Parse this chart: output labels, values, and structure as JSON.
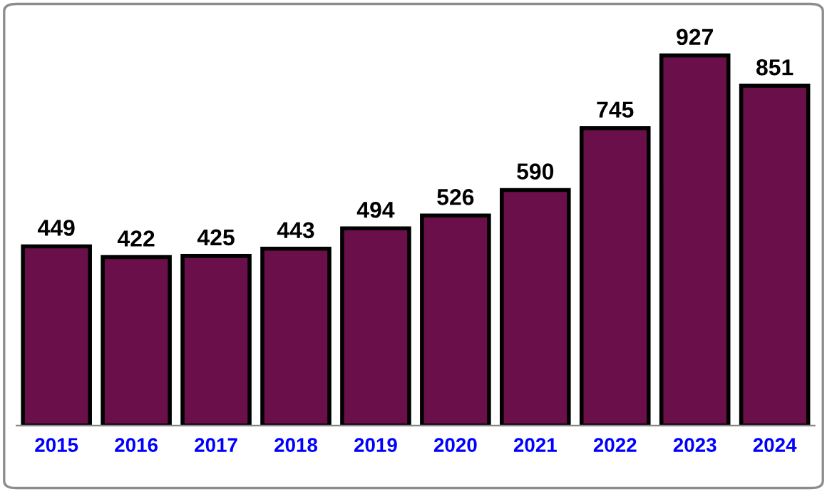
{
  "chart_data": {
    "type": "bar",
    "categories": [
      "2015",
      "2016",
      "2017",
      "2018",
      "2019",
      "2020",
      "2021",
      "2022",
      "2023",
      "2024"
    ],
    "values": [
      449,
      422,
      425,
      443,
      494,
      526,
      590,
      745,
      927,
      851
    ],
    "color": "#6b0f4a",
    "data_labels": true,
    "grid": false,
    "legend": false,
    "tick_labels": "x"
  }
}
